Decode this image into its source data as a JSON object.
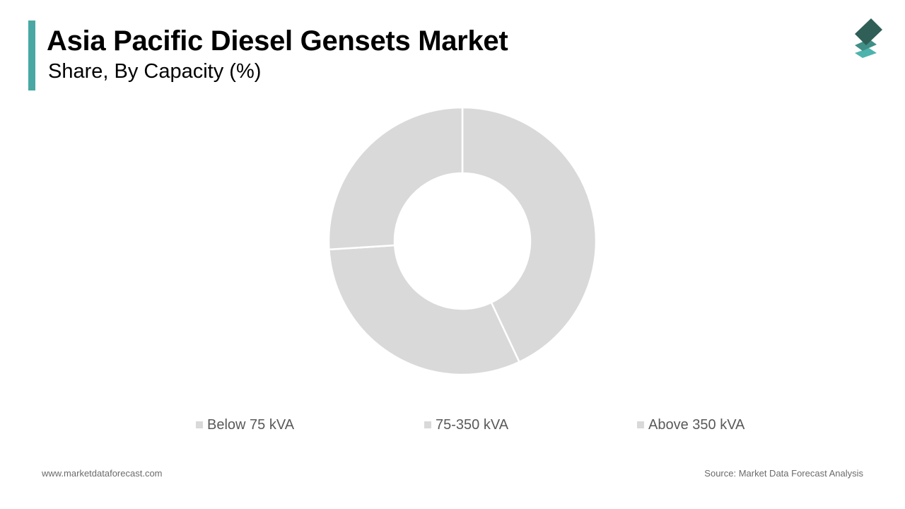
{
  "header": {
    "title": "Asia Pacific Diesel Gensets Market",
    "subtitle": "Share, By Capacity (%)",
    "accent_color": "#4aa8a4"
  },
  "logo": {
    "icon": "stacked-layers-icon",
    "colors": [
      "#2f5f57",
      "#3f8f86",
      "#4fb3ad"
    ]
  },
  "chart_data": {
    "type": "pie",
    "variant": "donut",
    "title": "Asia Pacific Diesel Gensets Market",
    "subtitle": "Share, By Capacity (%)",
    "categories": [
      "Below 75 kVA",
      "75-350 kVA",
      "Above 350 kVA"
    ],
    "values": [
      43,
      31,
      26
    ],
    "colors": [
      "#d9d9d9",
      "#d9d9d9",
      "#d9d9d9"
    ],
    "legend_position": "bottom",
    "legend_swatch_color": "#d9d9d9"
  },
  "footer": {
    "website": "www.marketdataforecast.com",
    "source": "Source: Market Data Forecast Analysis"
  }
}
